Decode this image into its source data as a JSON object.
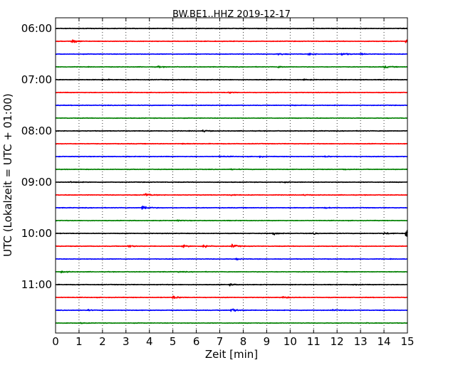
{
  "chart_data": {
    "type": "line",
    "title": "BW.BE1..HHZ 2019-12-17",
    "xlabel": "Zeit  [min]",
    "ylabel": "UTC (Lokalzeit = UTC + 01:00)",
    "xlim": [
      0,
      15
    ],
    "x_ticks": [
      "0",
      "1",
      "2",
      "3",
      "4",
      "5",
      "6",
      "7",
      "8",
      "9",
      "10",
      "11",
      "12",
      "13",
      "14",
      "15"
    ],
    "y_ticks": [
      "06:00",
      "07:00",
      "08:00",
      "09:00",
      "10:00",
      "11:00"
    ],
    "traces_per_hour": 4,
    "trace_minutes": 15,
    "trace_colors": [
      "#000000",
      "#ff0000",
      "#0000ff",
      "#008000"
    ],
    "grid": "vertical dotted at each minute",
    "traces": [
      {
        "start": "06:00",
        "events": []
      },
      {
        "start": "06:15",
        "events": [
          {
            "t": 0.7,
            "amp": 1.3
          },
          {
            "t": 14.95,
            "amp": 1.0
          }
        ]
      },
      {
        "start": "06:30",
        "events": [
          {
            "t": 9.5,
            "amp": 0.6
          },
          {
            "t": 10.8,
            "amp": 0.8
          },
          {
            "t": 12.2,
            "amp": 0.9
          },
          {
            "t": 13.0,
            "amp": 0.5
          }
        ]
      },
      {
        "start": "06:45",
        "events": [
          {
            "t": 4.3,
            "amp": 0.6
          },
          {
            "t": 9.5,
            "amp": 0.5
          },
          {
            "t": 14.0,
            "amp": 0.8
          }
        ]
      },
      {
        "start": "07:00",
        "events": [
          {
            "t": 2.0,
            "amp": 0.4
          },
          {
            "t": 10.6,
            "amp": 0.4
          }
        ]
      },
      {
        "start": "07:15",
        "events": [
          {
            "t": 7.4,
            "amp": 0.5
          }
        ]
      },
      {
        "start": "07:30",
        "events": [
          {
            "t": 10.0,
            "amp": 0.3
          }
        ]
      },
      {
        "start": "07:45",
        "events": []
      },
      {
        "start": "08:00",
        "events": [
          {
            "t": 6.3,
            "amp": 0.7
          }
        ]
      },
      {
        "start": "08:15",
        "events": [
          {
            "t": 5.4,
            "amp": 0.3
          }
        ]
      },
      {
        "start": "08:30",
        "events": [
          {
            "t": 7.0,
            "amp": 0.5
          },
          {
            "t": 8.7,
            "amp": 0.4
          },
          {
            "t": 11.5,
            "amp": 0.4
          }
        ]
      },
      {
        "start": "08:45",
        "events": [
          {
            "t": 7.5,
            "amp": 0.4
          },
          {
            "t": 12.3,
            "amp": 0.3
          }
        ]
      },
      {
        "start": "09:00",
        "events": [
          {
            "t": 0.6,
            "amp": 0.4
          },
          {
            "t": 9.6,
            "amp": 0.4
          }
        ]
      },
      {
        "start": "09:15",
        "events": [
          {
            "t": 3.8,
            "amp": 1.3
          },
          {
            "t": 7.5,
            "amp": 0.4
          },
          {
            "t": 10.6,
            "amp": 0.4
          }
        ]
      },
      {
        "start": "09:30",
        "events": [
          {
            "t": 3.7,
            "amp": 2.0
          },
          {
            "t": 11.5,
            "amp": 0.4
          }
        ]
      },
      {
        "start": "09:45",
        "events": [
          {
            "t": 5.2,
            "amp": 0.4
          }
        ]
      },
      {
        "start": "10:00",
        "events": [
          {
            "t": 9.3,
            "amp": 1.1
          },
          {
            "t": 11.0,
            "amp": 0.5
          },
          {
            "t": 14.0,
            "amp": 0.7
          },
          {
            "t": 14.95,
            "amp": 3.5
          }
        ]
      },
      {
        "start": "10:15",
        "events": [
          {
            "t": 3.1,
            "amp": 0.9
          },
          {
            "t": 5.4,
            "amp": 0.8
          },
          {
            "t": 6.3,
            "amp": 1.4
          },
          {
            "t": 7.5,
            "amp": 1.3
          }
        ]
      },
      {
        "start": "10:30",
        "events": [
          {
            "t": 7.7,
            "amp": 0.5
          }
        ]
      },
      {
        "start": "10:45",
        "events": [
          {
            "t": 0.25,
            "amp": 0.6
          },
          {
            "t": 5.2,
            "amp": 0.3
          }
        ]
      },
      {
        "start": "11:00",
        "events": [
          {
            "t": 7.4,
            "amp": 0.6
          },
          {
            "t": 12.7,
            "amp": 0.4
          }
        ]
      },
      {
        "start": "11:15",
        "events": [
          {
            "t": 5.0,
            "amp": 1.1
          },
          {
            "t": 9.7,
            "amp": 0.7
          }
        ]
      },
      {
        "start": "11:30",
        "events": [
          {
            "t": 1.3,
            "amp": 0.5
          },
          {
            "t": 7.5,
            "amp": 1.4
          },
          {
            "t": 11.8,
            "amp": 0.4
          }
        ]
      },
      {
        "start": "11:45",
        "events": [
          {
            "t": 1.0,
            "amp": 0.3
          },
          {
            "t": 13.3,
            "amp": 0.4
          }
        ]
      }
    ]
  }
}
